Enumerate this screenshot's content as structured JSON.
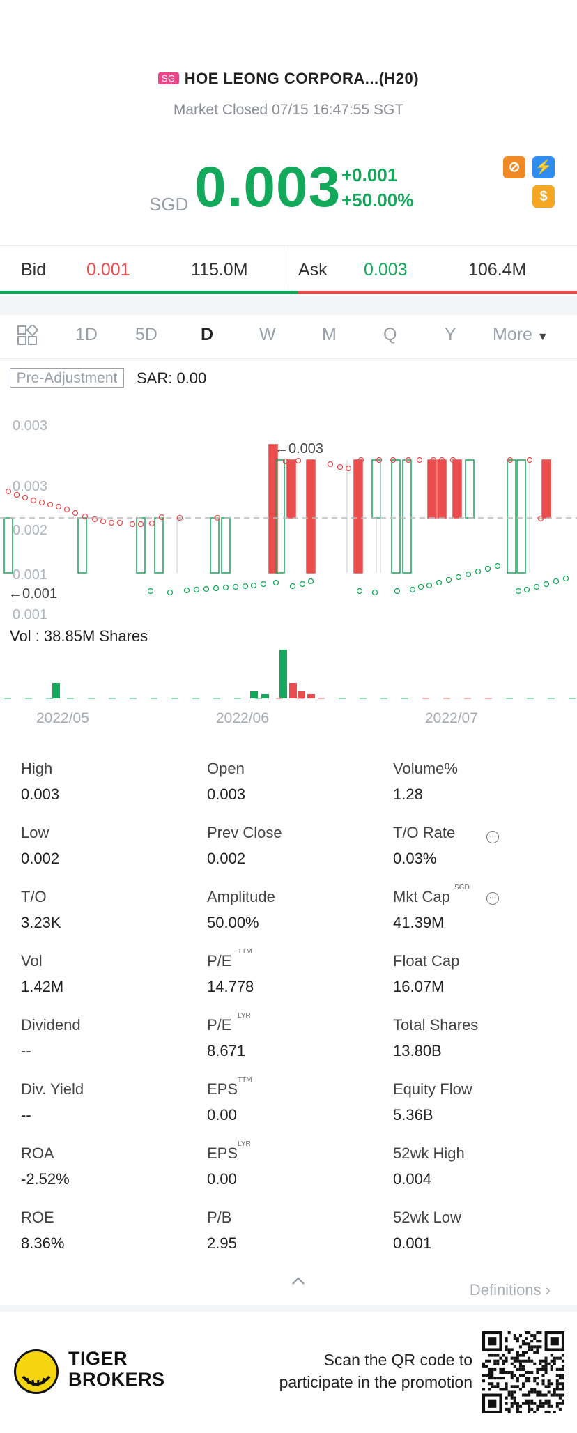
{
  "header": {
    "market_badge": "SG",
    "title": "HOE LEONG CORPORA...(H20)",
    "status": "Market Closed 07/15 16:47:55 SGT"
  },
  "quote": {
    "currency": "SGD",
    "price": "0.003",
    "change": "+0.001",
    "change_pct": "+50.00%"
  },
  "bid_ask": {
    "bid_label": "Bid",
    "bid_price": "0.001",
    "bid_size": "115.0M",
    "ask_label": "Ask",
    "ask_price": "0.003",
    "ask_size": "106.4M"
  },
  "period_tabs": [
    "1D",
    "5D",
    "D",
    "W",
    "M",
    "Q",
    "Y",
    "More"
  ],
  "active_tab": "D",
  "chart_controls": {
    "adjust_label": "Pre-Adjustment",
    "sar_label": "SAR: 0.00",
    "vol_label": "Vol  : 38.85M Shares"
  },
  "chart_data": {
    "type": "candlestick",
    "y_tick_labels": [
      "0.003",
      "0.003",
      "0.002",
      "0.001",
      "0.001"
    ],
    "last_price_marker": "0.003",
    "min_price_marker": "0.001",
    "x_tick_labels": [
      "2022/05",
      "2022/06",
      "2022/07"
    ],
    "ylim": [
      0.001,
      0.003
    ],
    "colors": {
      "up": "#14a85a",
      "down": "#ea4d4d",
      "sar": "#e05050"
    }
  },
  "stats": {
    "col1": [
      {
        "label": "High",
        "value": "0.003"
      },
      {
        "label": "Low",
        "value": "0.002"
      },
      {
        "label": "T/O",
        "value": "3.23K"
      },
      {
        "label": "Vol",
        "value": "1.42M"
      },
      {
        "label": "Dividend",
        "value": "--"
      },
      {
        "label": "Div. Yield",
        "value": "--"
      },
      {
        "label": "ROA",
        "value": "-2.52%"
      },
      {
        "label": "ROE",
        "value": "8.36%"
      }
    ],
    "col2": [
      {
        "label": "Open",
        "value": "0.003",
        "sup": ""
      },
      {
        "label": "Prev Close",
        "value": "0.002",
        "sup": ""
      },
      {
        "label": "Amplitude",
        "value": "50.00%",
        "sup": ""
      },
      {
        "label": "P/E",
        "value": "14.778",
        "sup": "TTM"
      },
      {
        "label": "P/E",
        "value": "8.671",
        "sup": "LYR"
      },
      {
        "label": "EPS",
        "value": "0.00",
        "sup": "TTM"
      },
      {
        "label": "EPS",
        "value": "0.00",
        "sup": "LYR"
      },
      {
        "label": "P/B",
        "value": "2.95",
        "sup": ""
      }
    ],
    "col3": [
      {
        "label": "Volume%",
        "value": "1.28",
        "sup": ""
      },
      {
        "label": "T/O Rate",
        "value": "0.03%",
        "sup": ""
      },
      {
        "label": "Mkt Cap",
        "value": "41.39M",
        "sup": "SGD"
      },
      {
        "label": "Float Cap",
        "value": "16.07M",
        "sup": ""
      },
      {
        "label": "Total Shares",
        "value": "13.80B",
        "sup": ""
      },
      {
        "label": "Equity Flow",
        "value": "5.36B",
        "sup": ""
      },
      {
        "label": "52wk High",
        "value": "0.004",
        "sup": ""
      },
      {
        "label": "52wk Low",
        "value": "0.001",
        "sup": ""
      }
    ]
  },
  "definitions_label": "Definitions",
  "footer": {
    "brand_line1": "TIGER",
    "brand_line2": "BROKERS",
    "promo_line1": "Scan the QR code to",
    "promo_line2": "participate in the promotion"
  }
}
